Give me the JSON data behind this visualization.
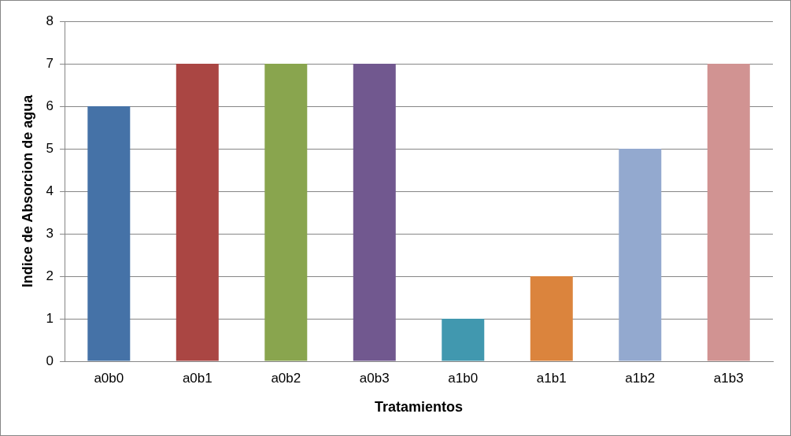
{
  "chart_data": {
    "type": "bar",
    "xlabel": "Tratamientos",
    "ylabel": "Indice de Absorcion de agua",
    "categories": [
      "a0b0",
      "a0b1",
      "a0b2",
      "a0b3",
      "a1b0",
      "a1b1",
      "a1b2",
      "a1b3"
    ],
    "values": [
      6,
      7,
      7,
      7,
      1,
      2,
      5,
      7
    ],
    "colors": [
      "#4572a7",
      "#aa4643",
      "#89a54e",
      "#71588f",
      "#4198af",
      "#db843d",
      "#93a9cf",
      "#d19392"
    ],
    "ylim": [
      0,
      8
    ],
    "yticks": [
      0,
      1,
      2,
      3,
      4,
      5,
      6,
      7,
      8
    ],
    "grid": "y",
    "legend": false
  }
}
